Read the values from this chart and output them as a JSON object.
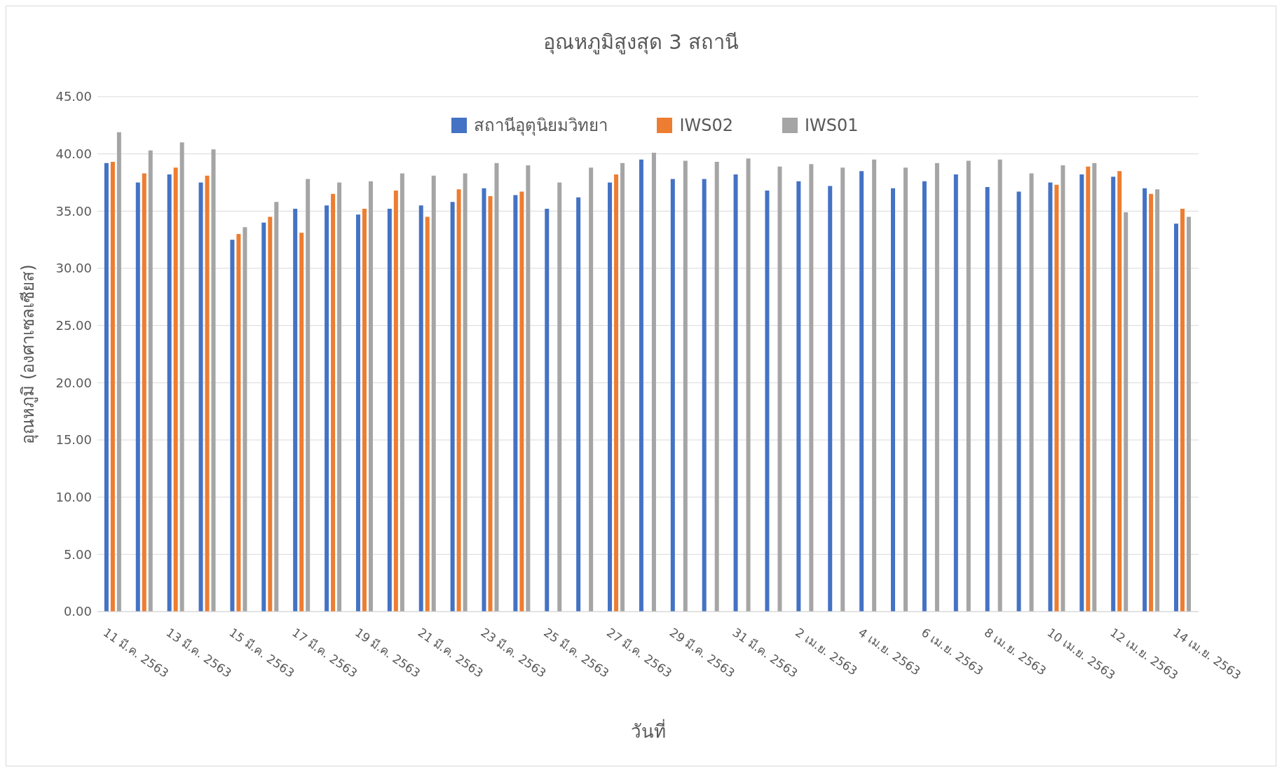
{
  "chart_data": {
    "type": "bar",
    "title": "อุณหภูมิสูงสุด 3 สถานี",
    "xlabel": "วันที่",
    "ylabel": "อุณหภูมิ (องศาเซลเซียส)",
    "categories": [
      "11 มี.ค. 2563",
      null,
      "13 มี.ค. 2563",
      null,
      "15 มี.ค. 2563",
      null,
      "17 มี.ค. 2563",
      null,
      "19 มี.ค. 2563",
      null,
      "21 มี.ค. 2563",
      null,
      "23 มี.ค. 2563",
      null,
      "25 มี.ค. 2563",
      null,
      "27 มี.ค. 2563",
      null,
      "29 มี.ค. 2563",
      null,
      "31 มี.ค. 2563",
      null,
      "2 เม.ย. 2563",
      null,
      "4 เม.ย. 2563",
      null,
      "6 เม.ย. 2563",
      null,
      "8 เม.ย. 2563",
      null,
      "10 เม.ย. 2563",
      null,
      "12 เม.ย. 2563",
      null,
      "14 เม.ย. 2563"
    ],
    "series": [
      {
        "name": "สถานีอุตุนิยมวิทยา",
        "color": "#4472c4",
        "values": [
          39.2,
          37.5,
          38.2,
          37.5,
          32.5,
          34.0,
          35.2,
          35.5,
          34.7,
          35.2,
          35.5,
          35.8,
          37.0,
          36.4,
          35.2,
          36.2,
          37.5,
          39.5,
          37.8,
          37.8,
          38.2,
          36.8,
          37.6,
          37.2,
          38.5,
          37.0,
          37.6,
          38.2,
          37.1,
          36.7,
          37.5,
          38.2,
          38.0,
          37.0,
          33.9
        ]
      },
      {
        "name": "IWS02",
        "color": "#ed7d31",
        "values": [
          39.3,
          38.3,
          38.8,
          38.1,
          33.0,
          34.5,
          33.1,
          36.5,
          35.2,
          36.8,
          34.5,
          36.9,
          36.3,
          36.7,
          null,
          null,
          38.2,
          null,
          null,
          null,
          null,
          null,
          null,
          null,
          null,
          null,
          null,
          null,
          null,
          null,
          37.3,
          38.9,
          38.5,
          36.5,
          35.2
        ]
      },
      {
        "name": "IWS01",
        "color": "#a5a5a5",
        "values": [
          41.9,
          40.3,
          41.0,
          40.4,
          33.6,
          35.8,
          37.8,
          37.5,
          37.6,
          38.3,
          38.1,
          38.3,
          39.2,
          39.0,
          37.5,
          38.8,
          39.2,
          40.1,
          39.4,
          39.3,
          39.6,
          38.9,
          39.1,
          38.8,
          39.5,
          38.8,
          39.2,
          39.4,
          39.5,
          38.3,
          39.0,
          39.2,
          34.9,
          36.9,
          34.5
        ]
      }
    ],
    "ylim": [
      0,
      45
    ],
    "yticks": [
      {
        "value": 0,
        "label": "0.00"
      },
      {
        "value": 5,
        "label": "5.00"
      },
      {
        "value": 10,
        "label": "10.00"
      },
      {
        "value": 15,
        "label": "15.00"
      },
      {
        "value": 20,
        "label": "20.00"
      },
      {
        "value": 25,
        "label": "25.00"
      },
      {
        "value": 30,
        "label": "30.00"
      },
      {
        "value": 35,
        "label": "35.00"
      },
      {
        "value": 40,
        "label": "40.00"
      },
      {
        "value": 45,
        "label": "45.00"
      }
    ],
    "grid": "y",
    "legend": "top"
  }
}
